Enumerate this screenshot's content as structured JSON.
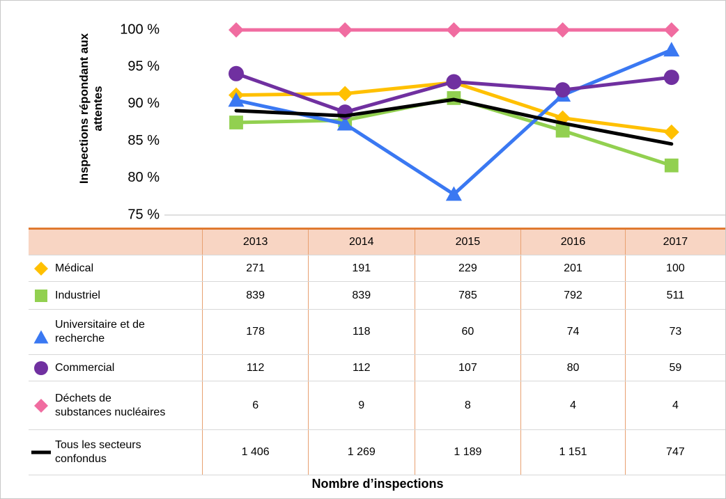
{
  "chart_data": {
    "type": "line",
    "ylabel": "Inspections répondant aux attentes",
    "xlabel": "Nombre d’inspections",
    "categories": [
      "2013",
      "2014",
      "2015",
      "2016",
      "2017"
    ],
    "ylim": [
      75,
      100
    ],
    "yticks": [
      {
        "value": 75,
        "label": "75 %"
      },
      {
        "value": 80,
        "label": "80 %"
      },
      {
        "value": 85,
        "label": "85 %"
      },
      {
        "value": 90,
        "label": "90 %"
      },
      {
        "value": 95,
        "label": "95 %"
      },
      {
        "value": 100,
        "label": "100 %"
      }
    ],
    "grid": false,
    "series": [
      {
        "name": "Médical",
        "color": "#ffc000",
        "marker": "diamond",
        "values": [
          91.2,
          91.4,
          92.9,
          88.1,
          86.2
        ],
        "inspections": [
          271,
          191,
          229,
          201,
          100
        ]
      },
      {
        "name": "Industriel",
        "color": "#92d050",
        "marker": "square",
        "values": [
          87.5,
          87.8,
          90.8,
          86.4,
          81.7
        ],
        "inspections": [
          839,
          839,
          785,
          792,
          511
        ]
      },
      {
        "name": "Universitaire et de recherche",
        "color": "#3a78f2",
        "marker": "triangle",
        "values": [
          90.5,
          87.3,
          77.8,
          91.2,
          97.3
        ],
        "inspections": [
          178,
          118,
          60,
          74,
          73
        ]
      },
      {
        "name": "Commercial",
        "color": "#7030a0",
        "marker": "circle",
        "values": [
          94.1,
          88.9,
          93.0,
          91.9,
          93.6
        ],
        "inspections": [
          112,
          112,
          107,
          80,
          59
        ]
      },
      {
        "name": "Déchets de substances nucléaires",
        "color": "#f06ca0",
        "marker": "diamond",
        "values": [
          100,
          100,
          100,
          100,
          100
        ],
        "inspections": [
          6,
          9,
          8,
          4,
          4
        ]
      },
      {
        "name": "Tous les secteurs confondus",
        "color": "#000000",
        "marker": "none",
        "values": [
          89.1,
          88.4,
          90.6,
          87.4,
          84.6
        ],
        "inspections": [
          1406,
          1269,
          1189,
          1151,
          747
        ],
        "inspection_labels": [
          "1 406",
          "1 269",
          "1 189",
          "1 151",
          "747"
        ]
      }
    ]
  }
}
